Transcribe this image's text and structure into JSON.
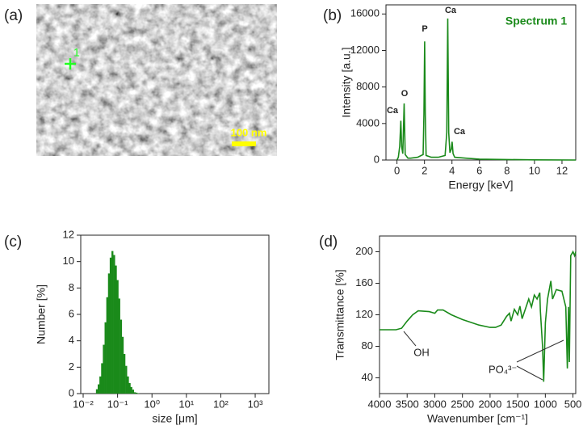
{
  "image": {
    "panel_label": "(a)",
    "marker_label": "1",
    "scale_bar_label": "100 nm"
  },
  "chart_data": [
    {
      "panel_label": "(b)",
      "type": "line",
      "title": "Spectrum 1",
      "title_color": "#1a8a1a",
      "x_label": "Energy [keV]",
      "y_label": "Intensity [a.u.]",
      "x": [
        0,
        0.1,
        0.2,
        0.28,
        0.34,
        0.42,
        0.52,
        0.6,
        0.8,
        1.0,
        1.5,
        1.9,
        1.96,
        2.01,
        2.06,
        2.12,
        2.5,
        3.0,
        3.5,
        3.62,
        3.69,
        3.76,
        3.85,
        3.95,
        4.01,
        4.08,
        4.2,
        5,
        6,
        8,
        10,
        13
      ],
      "values": [
        0,
        300,
        1500,
        4300,
        1500,
        700,
        6200,
        600,
        200,
        200,
        300,
        600,
        5000,
        13000,
        5000,
        500,
        300,
        300,
        500,
        3000,
        15500,
        3000,
        800,
        1200,
        2000,
        700,
        300,
        200,
        100,
        50,
        20,
        0
      ],
      "color": "#1a8a1a",
      "annotations": [
        "Ca",
        "O",
        "P",
        "Ca",
        "Ca"
      ],
      "xlim": [
        -0.8,
        13
      ],
      "xticks": [
        0,
        2,
        4,
        6,
        8,
        10,
        12
      ],
      "ylim": [
        0,
        17000
      ],
      "yticks": [
        0,
        4000,
        8000,
        12000,
        16000
      ]
    },
    {
      "panel_label": "(c)",
      "type": "bar",
      "x_label": "size [μm]",
      "y_label": "Number [%]",
      "log_x": true,
      "x": [
        0.0251,
        0.0282,
        0.0316,
        0.0355,
        0.0398,
        0.0447,
        0.0501,
        0.0562,
        0.0631,
        0.0708,
        0.0794,
        0.0891,
        0.1,
        0.112,
        0.126,
        0.141,
        0.158,
        0.178,
        0.2,
        0.224,
        0.251,
        0.282,
        0.316,
        0.355,
        0.398
      ],
      "values": [
        0.33,
        0.7,
        1.3,
        2.3,
        3.7,
        5.4,
        7.3,
        9.1,
        10.3,
        10.8,
        10.5,
        9.7,
        8.6,
        7.2,
        5.6,
        4.3,
        3.0,
        2.1,
        1.3,
        0.8,
        0.5,
        0.3,
        0.1,
        0.07,
        0.03
      ],
      "color": "#1a8a1a",
      "xlim": [
        0.0085,
        2500
      ],
      "xticks": [
        {
          "value": 0.01,
          "label": "10⁻²"
        },
        {
          "value": 0.1,
          "label": "10⁻¹"
        },
        {
          "value": 1,
          "label": "10⁰"
        },
        {
          "value": 10,
          "label": "10¹"
        },
        {
          "value": 100,
          "label": "10²"
        },
        {
          "value": 1000,
          "label": "10³"
        }
      ],
      "ylim": [
        0,
        12
      ],
      "yticks": [
        0,
        2,
        4,
        6,
        8,
        10,
        12
      ]
    },
    {
      "panel_label": "(d)",
      "type": "line",
      "x_label": "Wavenumber [cm⁻¹]",
      "y_label": "Transmittance [%]",
      "x": [
        4000,
        3700,
        3600,
        3500,
        3400,
        3300,
        3100,
        3000,
        2950,
        2850,
        2700,
        2500,
        2200,
        2000,
        1900,
        1800,
        1700,
        1650,
        1620,
        1560,
        1500,
        1460,
        1420,
        1300,
        1250,
        1200,
        1150,
        1100,
        1090,
        1050,
        1030,
        1000,
        960,
        900,
        870,
        800,
        700,
        630,
        602,
        580,
        565,
        540,
        500,
        470,
        450
      ],
      "values": [
        101,
        101,
        103,
        112,
        120,
        125,
        124,
        122,
        126,
        126,
        120,
        114,
        107,
        104,
        104,
        107,
        118,
        122,
        112,
        127,
        120,
        131,
        115,
        140,
        130,
        145,
        140,
        148,
        125,
        80,
        35,
        110,
        140,
        163,
        140,
        152,
        150,
        130,
        52,
        130,
        60,
        195,
        200,
        195,
        200
      ],
      "color": "#1a8a1a",
      "annotations": [
        "OH",
        "PO₄³⁻"
      ],
      "xlim": [
        4000,
        450
      ],
      "xticks": [
        4000,
        3500,
        3000,
        2500,
        2000,
        1500,
        1000,
        500
      ],
      "ylim": [
        20,
        220
      ],
      "yticks": [
        40,
        80,
        120,
        160,
        200
      ]
    }
  ]
}
